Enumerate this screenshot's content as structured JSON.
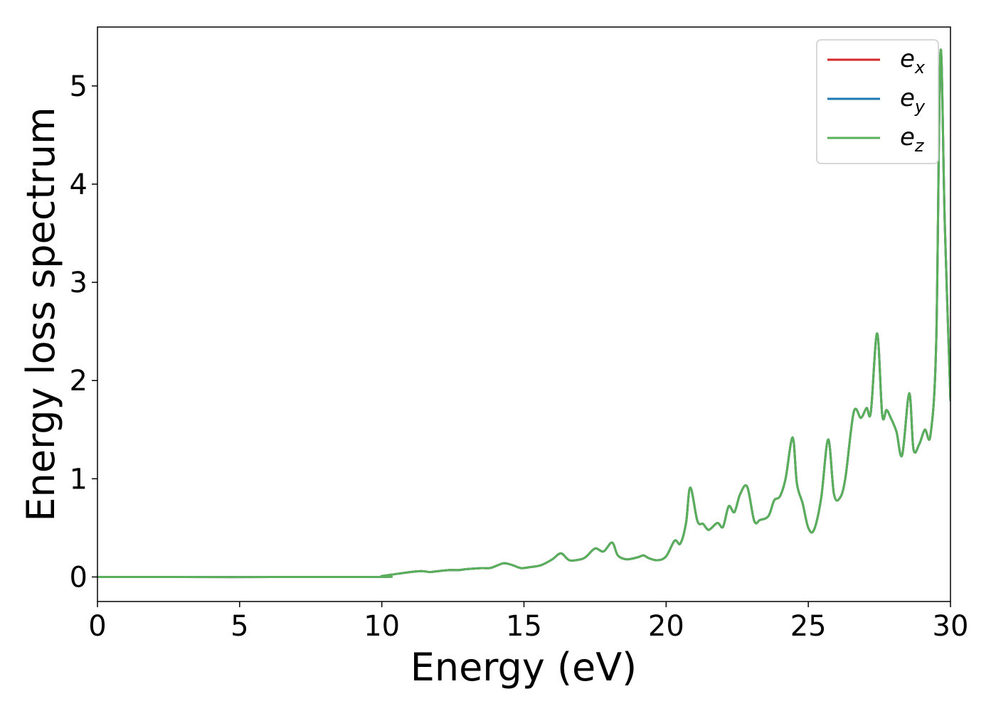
{
  "chart_data": {
    "type": "line",
    "title": "",
    "xlabel": "Energy (eV)",
    "ylabel": "Energy loss spectrum",
    "xlim": [
      0,
      30
    ],
    "ylim": [
      -0.25,
      5.6
    ],
    "xticks": [
      0,
      5,
      10,
      15,
      20,
      25,
      30
    ],
    "yticks": [
      0,
      1,
      2,
      3,
      4,
      5
    ],
    "grid": false,
    "legend": {
      "placement": "top-right",
      "entries": [
        {
          "base": "e",
          "sub": "x",
          "color": "#d62728"
        },
        {
          "base": "e",
          "sub": "y",
          "color": "#1f77b4"
        },
        {
          "base": "e",
          "sub": "z",
          "color": "#5ab05a"
        }
      ]
    },
    "x": [
      0,
      9.5,
      10,
      10.5,
      11,
      11.4,
      11.7,
      12,
      12.4,
      12.7,
      13,
      13.5,
      13.8,
      14,
      14.3,
      14.6,
      14.9,
      15.2,
      15.6,
      16,
      16.3,
      16.6,
      17,
      17.2,
      17.5,
      17.8,
      18.1,
      18.3,
      18.6,
      19,
      19.2,
      19.4,
      19.7,
      20,
      20.3,
      20.5,
      20.7,
      20.85,
      21.1,
      21.3,
      21.5,
      21.8,
      22,
      22.2,
      22.4,
      22.6,
      22.85,
      23.1,
      23.3,
      23.6,
      23.8,
      24,
      24.2,
      24.45,
      24.6,
      24.8,
      25,
      25.2,
      25.45,
      25.7,
      25.9,
      26.1,
      26.3,
      26.6,
      26.85,
      27.05,
      27.2,
      27.42,
      27.6,
      27.75,
      27.9,
      28.1,
      28.3,
      28.55,
      28.7,
      28.9,
      29.1,
      29.3,
      29.5,
      29.65,
      29.8,
      30
    ],
    "series": [
      {
        "name": "e_x",
        "values": [
          0,
          0,
          0.01,
          0.03,
          0.05,
          0.06,
          0.05,
          0.06,
          0.07,
          0.07,
          0.08,
          0.09,
          0.09,
          0.11,
          0.14,
          0.12,
          0.09,
          0.1,
          0.12,
          0.18,
          0.24,
          0.17,
          0.18,
          0.21,
          0.29,
          0.26,
          0.35,
          0.22,
          0.18,
          0.2,
          0.22,
          0.19,
          0.17,
          0.21,
          0.37,
          0.34,
          0.55,
          0.91,
          0.57,
          0.54,
          0.48,
          0.55,
          0.51,
          0.72,
          0.66,
          0.84,
          0.92,
          0.57,
          0.58,
          0.62,
          0.78,
          0.82,
          1.0,
          1.42,
          0.95,
          0.75,
          0.5,
          0.48,
          0.8,
          1.4,
          0.85,
          0.8,
          1.0,
          1.68,
          1.62,
          1.72,
          1.68,
          2.48,
          1.65,
          1.7,
          1.62,
          1.48,
          1.24,
          1.87,
          1.3,
          1.35,
          1.5,
          1.45,
          2.4,
          5.35,
          3.6,
          1.8
        ]
      },
      {
        "name": "e_y",
        "values": [
          0,
          0,
          0.01,
          0.03,
          0.05,
          0.06,
          0.05,
          0.06,
          0.07,
          0.07,
          0.08,
          0.09,
          0.09,
          0.11,
          0.14,
          0.12,
          0.09,
          0.1,
          0.12,
          0.18,
          0.24,
          0.17,
          0.18,
          0.21,
          0.29,
          0.26,
          0.35,
          0.22,
          0.18,
          0.2,
          0.22,
          0.19,
          0.17,
          0.21,
          0.37,
          0.34,
          0.55,
          0.91,
          0.57,
          0.54,
          0.48,
          0.55,
          0.51,
          0.72,
          0.66,
          0.84,
          0.92,
          0.57,
          0.58,
          0.62,
          0.78,
          0.82,
          1.0,
          1.42,
          0.95,
          0.75,
          0.5,
          0.48,
          0.8,
          1.4,
          0.85,
          0.8,
          1.0,
          1.68,
          1.62,
          1.72,
          1.68,
          2.48,
          1.65,
          1.7,
          1.62,
          1.48,
          1.24,
          1.87,
          1.3,
          1.35,
          1.5,
          1.45,
          2.4,
          5.35,
          3.6,
          1.8
        ]
      },
      {
        "name": "e_z",
        "values": [
          0,
          0,
          0.01,
          0.03,
          0.05,
          0.06,
          0.05,
          0.06,
          0.07,
          0.07,
          0.08,
          0.09,
          0.09,
          0.11,
          0.14,
          0.12,
          0.09,
          0.1,
          0.12,
          0.18,
          0.24,
          0.17,
          0.18,
          0.21,
          0.29,
          0.26,
          0.35,
          0.22,
          0.18,
          0.2,
          0.22,
          0.19,
          0.17,
          0.21,
          0.37,
          0.34,
          0.55,
          0.91,
          0.57,
          0.54,
          0.48,
          0.55,
          0.51,
          0.72,
          0.66,
          0.84,
          0.92,
          0.57,
          0.58,
          0.62,
          0.78,
          0.82,
          1.0,
          1.42,
          0.95,
          0.75,
          0.5,
          0.48,
          0.8,
          1.4,
          0.85,
          0.8,
          1.0,
          1.68,
          1.62,
          1.72,
          1.68,
          2.48,
          1.65,
          1.7,
          1.62,
          1.48,
          1.24,
          1.87,
          1.3,
          1.35,
          1.5,
          1.45,
          2.4,
          5.35,
          3.6,
          1.8
        ]
      }
    ]
  }
}
